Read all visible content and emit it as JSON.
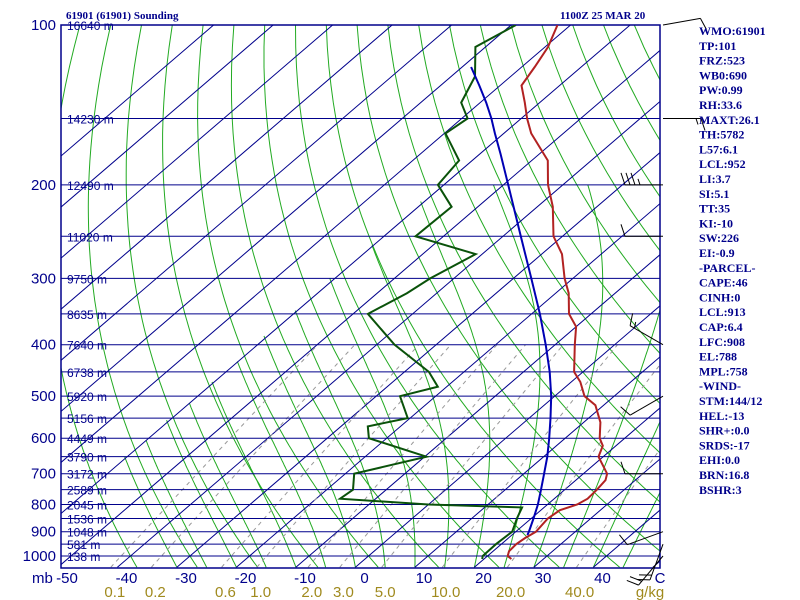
{
  "header": {
    "station": "61901 (61901) Sounding",
    "time": "1100Z 25 MAR 20"
  },
  "indices": [
    "WMO:61901",
    "TP:101",
    "FRZ:523",
    "WB0:690",
    "PW:0.99",
    "RH:33.6",
    "MAXT:26.1",
    "TH:5782",
    "L57:6.1",
    "LCL:952",
    "LI:3.7",
    "SI:5.1",
    "TT:35",
    "KI:-10",
    "SW:226",
    "EI:-0.9",
    "-PARCEL-",
    "CAPE:46",
    "CINH:0",
    "LCL:913",
    "CAP:6.4",
    "LFC:908",
    "EL:788",
    "MPL:758",
    "-WIND-",
    "STM:144/12",
    "HEL:-13",
    "SHR+:0.0",
    "SRDS:-17",
    "EHI:0.0",
    "BRN:16.8",
    "BSHR:3"
  ],
  "colors": {
    "isobar": "#00008b",
    "dry_adiabat": "#22aa22",
    "moist_adiabat": "#22aa22",
    "mixing_ratio": "#999999",
    "frame": "#00008b",
    "temperature": "#b22222",
    "dewpoint": "#0a520a",
    "parcel": "#0000b4",
    "wind_barb": "#000000",
    "mixing_label": "#a08a1e"
  },
  "chart_data": {
    "type": "skew-t",
    "pressure_unit": "mb",
    "temperature_unit": "C",
    "mixing_ratio_unit": "g/kg",
    "pressure_levels": [
      100,
      200,
      300,
      400,
      500,
      600,
      700,
      800,
      900,
      1000
    ],
    "pressure_range": [
      1050,
      100
    ],
    "temperature_ticks": [
      -50,
      -40,
      -30,
      -20,
      -10,
      0,
      10,
      20,
      30,
      40
    ],
    "temperature_axis_end": "C",
    "mixing_ratio_ticks": [
      "0.1",
      "0.2",
      "0.6",
      "1.0",
      "2.0",
      "3.0",
      "5.0",
      "10.0",
      "20.0",
      "40.0"
    ],
    "mixing_ratio_values": [
      0.1,
      0.2,
      0.6,
      1.0,
      2.0,
      3.0,
      5.0,
      10.0,
      20.0,
      40.0
    ],
    "height_labels": [
      {
        "p": 100,
        "label": "16640 m"
      },
      {
        "p": 150,
        "label": "14230 m"
      },
      {
        "p": 200,
        "label": "12490 m"
      },
      {
        "p": 250,
        "label": "11020 m"
      },
      {
        "p": 300,
        "label": "9750 m"
      },
      {
        "p": 350,
        "label": "8635 m"
      },
      {
        "p": 400,
        "label": "7640 m"
      },
      {
        "p": 450,
        "label": "6738 m"
      },
      {
        "p": 500,
        "label": "5920 m"
      },
      {
        "p": 550,
        "label": "5156 m"
      },
      {
        "p": 600,
        "label": "4449 m"
      },
      {
        "p": 650,
        "label": "3790 m"
      },
      {
        "p": 700,
        "label": "3172 m"
      },
      {
        "p": 750,
        "label": "2589 m"
      },
      {
        "p": 800,
        "label": "2045 m"
      },
      {
        "p": 850,
        "label": "1536 m"
      },
      {
        "p": 900,
        "label": "1048 m"
      },
      {
        "p": 950,
        "label": "581 m"
      },
      {
        "p": 1000,
        "label": "138 m"
      }
    ],
    "temperature": [
      {
        "p": 1013,
        "t": 24.6
      },
      {
        "p": 1000,
        "t": 23.4
      },
      {
        "p": 980,
        "t": 22.7
      },
      {
        "p": 950,
        "t": 22.5
      },
      {
        "p": 925,
        "t": 22.8
      },
      {
        "p": 900,
        "t": 23.4
      },
      {
        "p": 850,
        "t": 22.8
      },
      {
        "p": 820,
        "t": 23.2
      },
      {
        "p": 800,
        "t": 25.0
      },
      {
        "p": 780,
        "t": 25.6
      },
      {
        "p": 750,
        "t": 25.4
      },
      {
        "p": 720,
        "t": 25.0
      },
      {
        "p": 700,
        "t": 24.0
      },
      {
        "p": 650,
        "t": 19.2
      },
      {
        "p": 620,
        "t": 17.8
      },
      {
        "p": 600,
        "t": 15.8
      },
      {
        "p": 560,
        "t": 12.8
      },
      {
        "p": 520,
        "t": 8.6
      },
      {
        "p": 500,
        "t": 5.0
      },
      {
        "p": 470,
        "t": 1.5
      },
      {
        "p": 450,
        "t": -1.5
      },
      {
        "p": 400,
        "t": -6.7
      },
      {
        "p": 370,
        "t": -10.0
      },
      {
        "p": 350,
        "t": -13.7
      },
      {
        "p": 320,
        "t": -17.8
      },
      {
        "p": 300,
        "t": -21.4
      },
      {
        "p": 270,
        "t": -26.6
      },
      {
        "p": 250,
        "t": -31.5
      },
      {
        "p": 220,
        "t": -37.4
      },
      {
        "p": 200,
        "t": -42.5
      },
      {
        "p": 180,
        "t": -47.3
      },
      {
        "p": 160,
        "t": -55.4
      },
      {
        "p": 150,
        "t": -59.0
      },
      {
        "p": 140,
        "t": -62.5
      },
      {
        "p": 130,
        "t": -66.4
      },
      {
        "p": 120,
        "t": -67.8
      },
      {
        "p": 110,
        "t": -69.5
      },
      {
        "p": 100,
        "t": -72.2
      }
    ],
    "dewpoint": [
      {
        "p": 1013,
        "td": 19.7
      },
      {
        "p": 1000,
        "td": 19.2
      },
      {
        "p": 950,
        "td": 19.1
      },
      {
        "p": 900,
        "td": 19.4
      },
      {
        "p": 850,
        "td": 17.6
      },
      {
        "p": 810,
        "td": 16.3
      },
      {
        "p": 800,
        "td": 0.0
      },
      {
        "p": 780,
        "td": -16.0
      },
      {
        "p": 750,
        "td": -15.6
      },
      {
        "p": 700,
        "td": -18.5
      },
      {
        "p": 650,
        "td": -9.7
      },
      {
        "p": 600,
        "td": -23.0
      },
      {
        "p": 570,
        "td": -25.5
      },
      {
        "p": 550,
        "td": -20.4
      },
      {
        "p": 500,
        "td": -26.0
      },
      {
        "p": 480,
        "td": -21.5
      },
      {
        "p": 450,
        "td": -25.9
      },
      {
        "p": 400,
        "td": -37.0
      },
      {
        "p": 350,
        "td": -47.5
      },
      {
        "p": 320,
        "td": -45.0
      },
      {
        "p": 300,
        "td": -44.0
      },
      {
        "p": 270,
        "td": -41.1
      },
      {
        "p": 250,
        "td": -54.7
      },
      {
        "p": 220,
        "td": -54.4
      },
      {
        "p": 200,
        "td": -61.0
      },
      {
        "p": 180,
        "td": -62.2
      },
      {
        "p": 160,
        "td": -69.8
      },
      {
        "p": 150,
        "td": -69.0
      },
      {
        "p": 140,
        "td": -73.2
      },
      {
        "p": 125,
        "td": -76.0
      },
      {
        "p": 110,
        "td": -81.7
      },
      {
        "p": 100,
        "td": -79.2
      }
    ],
    "parcel": [
      {
        "p": 913,
        "t": 22.6
      },
      {
        "p": 900,
        "t": 22.2
      },
      {
        "p": 850,
        "t": 20.4
      },
      {
        "p": 800,
        "t": 18.4
      },
      {
        "p": 750,
        "t": 16.0
      },
      {
        "p": 700,
        "t": 13.4
      },
      {
        "p": 650,
        "t": 10.6
      },
      {
        "p": 600,
        "t": 7.3
      },
      {
        "p": 550,
        "t": 3.6
      },
      {
        "p": 500,
        "t": -0.6
      },
      {
        "p": 450,
        "t": -5.6
      },
      {
        "p": 400,
        "t": -11.6
      },
      {
        "p": 350,
        "t": -18.6
      },
      {
        "p": 300,
        "t": -27.0
      },
      {
        "p": 250,
        "t": -37.0
      },
      {
        "p": 200,
        "t": -49.2
      },
      {
        "p": 175,
        "t": -56.5
      },
      {
        "p": 160,
        "t": -61.5
      },
      {
        "p": 150,
        "t": -65.0
      },
      {
        "p": 140,
        "t": -69.0
      },
      {
        "p": 130,
        "t": -73.5
      },
      {
        "p": 120,
        "t": -78.5
      }
    ],
    "wind_barbs": [
      {
        "p": 100,
        "dir": 80,
        "spd": 10
      },
      {
        "p": 150,
        "dir": 90,
        "spd": 15
      },
      {
        "p": 200,
        "dir": 270,
        "spd": 35
      },
      {
        "p": 250,
        "dir": 270,
        "spd": 10
      },
      {
        "p": 400,
        "dir": 300,
        "spd": 15
      },
      {
        "p": 500,
        "dir": 240,
        "spd": 10
      },
      {
        "p": 700,
        "dir": 270,
        "spd": 10
      },
      {
        "p": 900,
        "dir": 250,
        "spd": 10
      },
      {
        "p": 950,
        "dir": 200,
        "spd": 20
      },
      {
        "p": 1000,
        "dir": 220,
        "spd": 20
      }
    ]
  }
}
